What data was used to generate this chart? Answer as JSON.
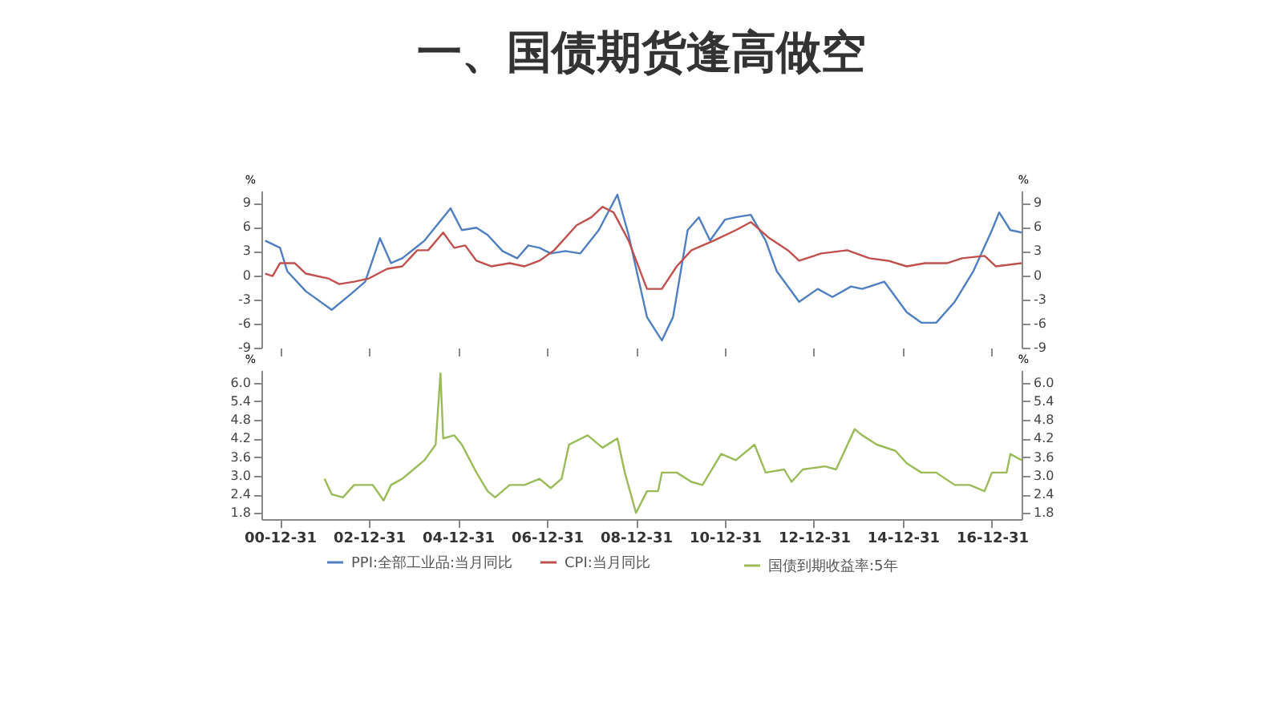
{
  "chart_data": [
    {
      "type": "line",
      "title": "一、国债期货逢高做空",
      "ylabel": "%",
      "y2label": "%",
      "xlim": [
        "2000-08",
        "2017-09"
      ],
      "ylim": [
        -9,
        10.5
      ],
      "yticks": [
        -9,
        -6,
        -3,
        0,
        3,
        6,
        9
      ],
      "y2lim": [
        -9,
        10.5
      ],
      "y2ticks": [
        -9,
        -6,
        -3,
        0,
        3,
        6,
        9
      ],
      "xticks": [
        {
          "value": "2000-12-31",
          "label": null
        },
        {
          "value": "2002-12-31",
          "label": null
        },
        {
          "value": "2004-12-31",
          "label": null
        },
        {
          "value": "2006-12-31",
          "label": null
        },
        {
          "value": "2008-12-31",
          "label": null
        },
        {
          "value": "2010-12-31",
          "label": null
        },
        {
          "value": "2012-12-31",
          "label": null
        },
        {
          "value": "2014-12-31",
          "label": null
        },
        {
          "value": "2016-12-31",
          "label": null
        }
      ],
      "tick_labels": "y",
      "grid": false,
      "legend": "bottom",
      "line_style": "solid",
      "marker": "none",
      "series": [
        {
          "name": "PPI:全部工业品:当月同比",
          "color": "#4f7fc0",
          "x": [
            "2000-09",
            "2001-01",
            "2001-03",
            "2001-08",
            "2002-03",
            "2002-08",
            "2002-12",
            "2003-04",
            "2003-07",
            "2003-10",
            "2004-04",
            "2004-08",
            "2004-11",
            "2005-02",
            "2005-06",
            "2005-09",
            "2006-01",
            "2006-05",
            "2006-08",
            "2006-11",
            "2007-02",
            "2007-06",
            "2007-10",
            "2008-03",
            "2008-08",
            "2008-11",
            "2009-04",
            "2009-08",
            "2009-11",
            "2010-03",
            "2010-06",
            "2010-09",
            "2011-01",
            "2011-04",
            "2011-08",
            "2011-12",
            "2012-03",
            "2012-09",
            "2013-02",
            "2013-06",
            "2013-11",
            "2014-02",
            "2014-08",
            "2015-02",
            "2015-06",
            "2015-10",
            "2016-03",
            "2016-08",
            "2017-01",
            "2017-03",
            "2017-06",
            "2017-09"
          ],
          "values": [
            4.3,
            3.4,
            0.5,
            -2,
            -4.3,
            -2.4,
            -0.8,
            4.6,
            1.5,
            2.1,
            4.3,
            6.6,
            8.3,
            5.6,
            5.9,
            5,
            3,
            2.1,
            3.7,
            3.4,
            2.7,
            3,
            2.7,
            5.6,
            10,
            5,
            -5.2,
            -8.1,
            -5.2,
            5.6,
            7.2,
            4.3,
            6.9,
            7.2,
            7.5,
            4.3,
            0.5,
            -3.3,
            -1.7,
            -2.7,
            -1.4,
            -1.7,
            -0.8,
            -4.6,
            -5.9,
            -5.9,
            -3.3,
            0.5,
            5.6,
            7.8,
            5.6,
            5.3
          ]
        },
        {
          "name": "CPI:当月同比",
          "color": "#c0504d",
          "x": [
            "2000-09",
            "2000-11",
            "2001-01",
            "2001-05",
            "2001-08",
            "2002-02",
            "2002-05",
            "2002-09",
            "2003-01",
            "2003-06",
            "2003-10",
            "2004-02",
            "2004-05",
            "2004-09",
            "2004-12",
            "2005-03",
            "2005-06",
            "2005-10",
            "2006-03",
            "2006-07",
            "2006-11",
            "2007-03",
            "2007-09",
            "2008-01",
            "2008-04",
            "2008-07",
            "2008-11",
            "2009-04",
            "2009-08",
            "2009-12",
            "2010-04",
            "2010-10",
            "2011-04",
            "2011-08",
            "2012-01",
            "2012-06",
            "2012-09",
            "2013-03",
            "2013-10",
            "2014-04",
            "2014-09",
            "2015-02",
            "2015-07",
            "2016-01",
            "2016-05",
            "2016-11",
            "2017-02",
            "2017-09"
          ],
          "values": [
            0.2,
            -0.1,
            1.5,
            1.5,
            0.2,
            -0.4,
            -1.1,
            -0.8,
            -0.4,
            0.8,
            1.1,
            3.1,
            3.1,
            5.3,
            3.4,
            3.7,
            1.8,
            1.1,
            1.5,
            1.1,
            1.8,
            3.1,
            6.2,
            7.2,
            8.5,
            7.8,
            4.3,
            -1.7,
            -1.7,
            1.1,
            3.1,
            4.3,
            5.6,
            6.6,
            4.6,
            3.1,
            1.8,
            2.7,
            3.1,
            2.1,
            1.8,
            1.1,
            1.5,
            1.5,
            2.1,
            2.4,
            1.1,
            1.5
          ]
        }
      ]
    },
    {
      "type": "line",
      "ylabel": "%",
      "y2label": "%",
      "xlim": [
        "2000-08",
        "2017-09"
      ],
      "ylim": [
        1.6,
        6.4
      ],
      "yticks": [
        1.8,
        2.4,
        {
          "value": 3,
          "label": "3.0"
        },
        3.6,
        4.2,
        4.8,
        5.4,
        {
          "value": 6,
          "label": "6.0"
        }
      ],
      "y2lim": [
        1.6,
        6.4
      ],
      "y2ticks": [
        1.8,
        2.4,
        {
          "value": 3,
          "label": "3.0"
        },
        3.6,
        4.2,
        4.8,
        5.4,
        {
          "value": 6,
          "label": "6.0"
        }
      ],
      "xticks": [
        {
          "value": "2000-12-31",
          "label": "00-12-31"
        },
        {
          "value": "2002-12-31",
          "label": "02-12-31"
        },
        {
          "value": "2004-12-31",
          "label": "04-12-31"
        },
        {
          "value": "2006-12-31",
          "label": "06-12-31"
        },
        {
          "value": "2008-12-31",
          "label": "08-12-31"
        },
        {
          "value": "2010-12-31",
          "label": "10-12-31"
        },
        {
          "value": "2012-12-31",
          "label": "12-12-31"
        },
        {
          "value": "2014-12-31",
          "label": "14-12-31"
        },
        {
          "value": "2016-12-31",
          "label": "16-12-31"
        }
      ],
      "grid": false,
      "legend": "bottom",
      "line_style": "solid",
      "marker": "none",
      "series": [
        {
          "name": "国债到期收益率:5年",
          "color": "#9bbb59",
          "x": [
            "2002-01",
            "2002-03",
            "2002-06",
            "2002-09",
            "2003-02",
            "2003-05",
            "2003-07",
            "2003-10",
            "2004-01",
            "2004-04",
            "2004-07",
            "2004-08-10",
            "2004-09",
            "2004-12",
            "2005-02",
            "2005-06",
            "2005-09",
            "2005-11",
            "2006-03",
            "2006-07",
            "2006-11",
            "2007-02",
            "2007-05",
            "2007-07",
            "2007-12",
            "2008-04",
            "2008-08",
            "2008-10",
            "2009-01",
            "2009-04",
            "2009-07",
            "2009-08",
            "2009-12",
            "2010-04",
            "2010-07",
            "2010-12",
            "2011-04",
            "2011-09",
            "2011-12",
            "2012-05",
            "2012-07",
            "2012-10",
            "2013-04",
            "2013-07",
            "2013-12",
            "2014-02",
            "2014-06",
            "2014-11",
            "2015-02",
            "2015-06",
            "2015-10",
            "2016-03",
            "2016-07",
            "2016-11",
            "2017-01",
            "2017-05",
            "2017-06",
            "2017-09"
          ],
          "values": [
            2.9,
            2.4,
            2.3,
            2.7,
            2.7,
            2.2,
            2.7,
            2.9,
            3.2,
            3.5,
            4.0,
            6.3,
            4.2,
            4.3,
            4.0,
            3.1,
            2.5,
            2.3,
            2.7,
            2.7,
            2.9,
            2.6,
            2.9,
            4.0,
            4.3,
            3.9,
            4.2,
            3.1,
            1.8,
            2.5,
            2.5,
            3.1,
            3.1,
            2.8,
            2.7,
            3.7,
            3.5,
            4.0,
            3.1,
            3.2,
            2.8,
            3.2,
            3.3,
            3.2,
            4.5,
            4.3,
            4.0,
            3.8,
            3.4,
            3.1,
            3.1,
            2.7,
            2.7,
            2.5,
            3.1,
            3.1,
            3.7,
            3.5
          ]
        }
      ]
    }
  ]
}
